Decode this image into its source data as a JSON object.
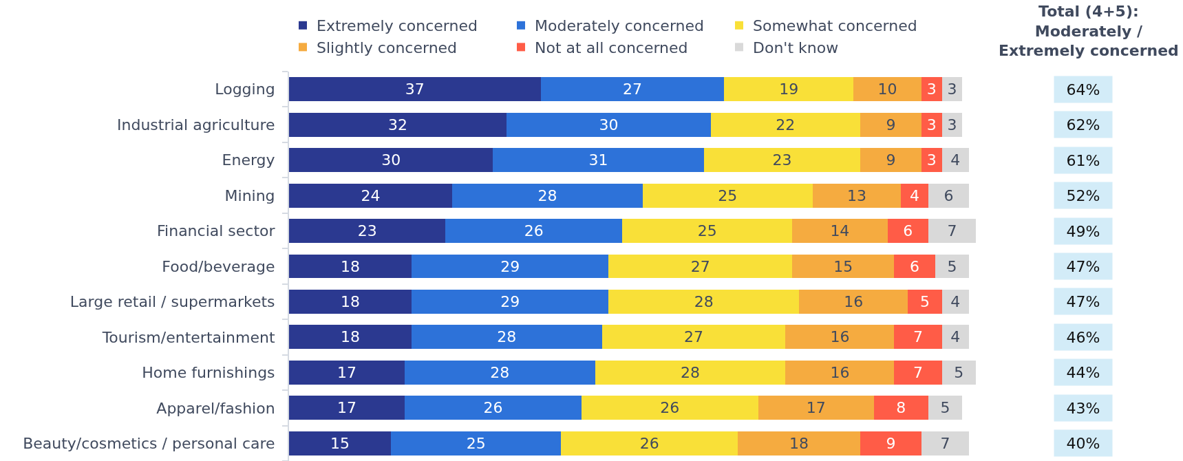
{
  "chart_data": {
    "type": "bar",
    "orientation": "horizontal",
    "stacked": true,
    "categories": [
      "Logging",
      "Industrial agriculture",
      "Energy",
      "Mining",
      "Financial sector",
      "Food/beverage",
      "Large retail / supermarkets",
      "Tourism/entertainment",
      "Home furnishings",
      "Apparel/fashion",
      "Beauty/cosmetics / personal care"
    ],
    "series": [
      {
        "name": "Extremely concerned",
        "color": "#2b3990",
        "values": [
          37,
          32,
          30,
          24,
          23,
          18,
          18,
          18,
          17,
          17,
          15
        ]
      },
      {
        "name": "Moderately concerned",
        "color": "#2d72d9",
        "values": [
          27,
          30,
          31,
          28,
          26,
          29,
          29,
          28,
          28,
          26,
          25
        ]
      },
      {
        "name": "Somewhat concerned",
        "color": "#f9e038",
        "values": [
          19,
          22,
          23,
          25,
          25,
          27,
          28,
          27,
          28,
          26,
          26
        ]
      },
      {
        "name": "Slightly concerned",
        "color": "#f5ab40",
        "values": [
          10,
          9,
          9,
          13,
          14,
          15,
          16,
          16,
          16,
          17,
          18
        ]
      },
      {
        "name": "Not at all concerned",
        "color": "#ff5c47",
        "values": [
          3,
          3,
          3,
          4,
          6,
          6,
          5,
          7,
          7,
          8,
          9
        ]
      },
      {
        "name": "Don't know",
        "color": "#d9d9d9",
        "values": [
          3,
          3,
          4,
          6,
          7,
          5,
          4,
          4,
          5,
          5,
          7
        ]
      }
    ],
    "xlim": [
      0,
      101
    ],
    "tick_labels": "y",
    "data_labels": true,
    "legend": "top",
    "annotations": [
      "Total (4+5):\nModerately /\nExtremely concerned",
      "64%",
      "62%",
      "61%",
      "52%",
      "49%",
      "47%",
      "47%",
      "46%",
      "44%",
      "43%",
      "40%"
    ]
  }
}
